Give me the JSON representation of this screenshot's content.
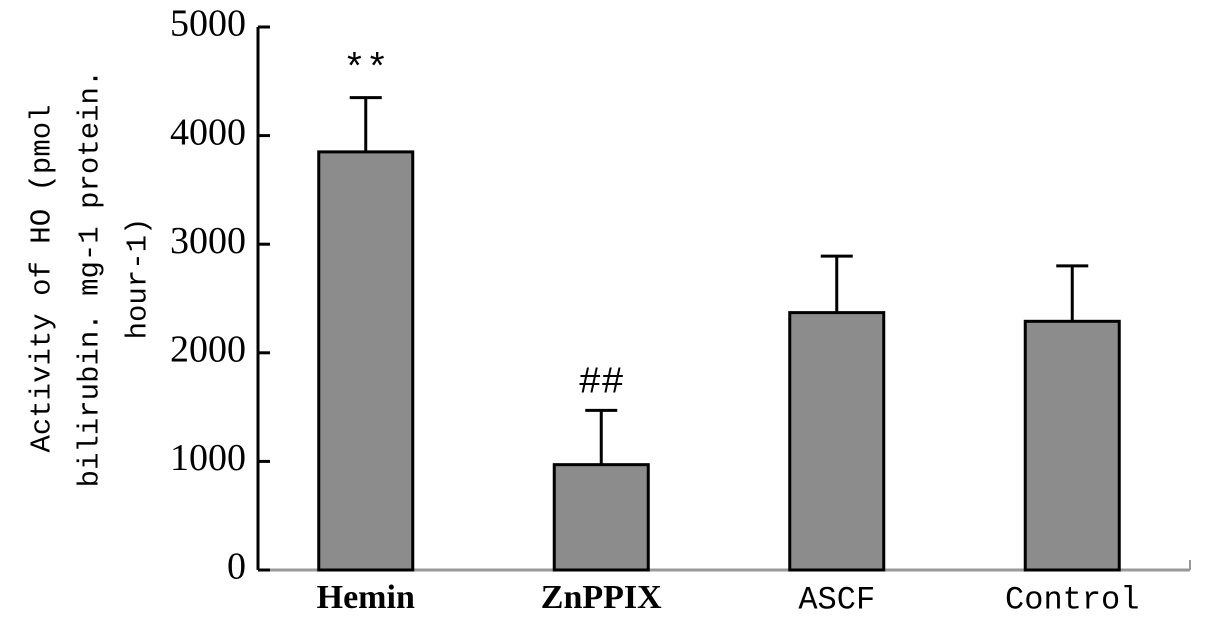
{
  "chart_data": {
    "type": "bar",
    "ylabel": [
      "Activity of HO (pmol",
      "bilirubin. mg-1 protein.",
      "hour-1)"
    ],
    "categories": [
      "Hemin",
      "ZnPPIX",
      "ASCF",
      "Control"
    ],
    "values": [
      3850,
      970,
      2370,
      2290
    ],
    "errors": [
      500,
      500,
      520,
      510
    ],
    "annotations": [
      "**",
      "##",
      null,
      null
    ],
    "color": "#8c8c8c",
    "ylim": [
      0,
      5000
    ],
    "yticks": [
      0,
      1000,
      2000,
      3000,
      4000,
      5000
    ],
    "grid": false
  }
}
